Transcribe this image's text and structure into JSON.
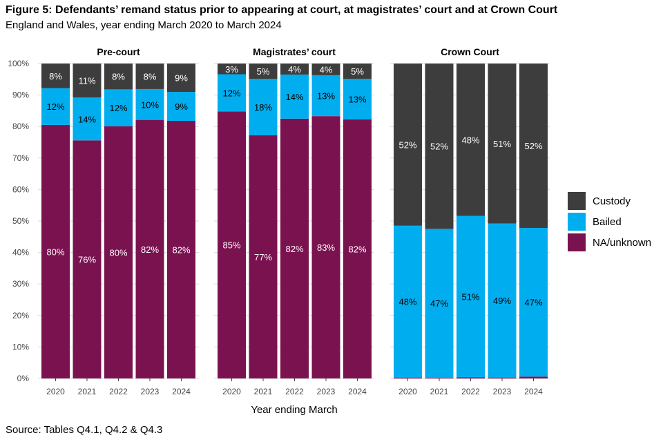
{
  "title": "Figure 5: Defendants’ remand status prior to appearing at court, at magistrates’ court and at Crown Court",
  "subtitle": "England and Wales, year ending March 2020 to March 2024",
  "source": "Source: Tables Q4.1, Q4.2 & Q4.3",
  "xlabel": "Year ending March",
  "y_ticks": [
    "0%",
    "10%",
    "20%",
    "30%",
    "40%",
    "50%",
    "60%",
    "70%",
    "80%",
    "90%",
    "100%"
  ],
  "colors": {
    "custody": "#3d3d3d",
    "bailed": "#00aeef",
    "na_unknown": "#7b1250",
    "grid": "#d9d9d9",
    "axis_text": "#444444"
  },
  "legend": [
    {
      "label": "Custody",
      "color": "#3d3d3d"
    },
    {
      "label": "Bailed",
      "color": "#00aeef"
    },
    {
      "label": "NA/unknown",
      "color": "#7b1250"
    }
  ],
  "chart_data": {
    "type": "bar",
    "stacked": true,
    "ylim": [
      0,
      100
    ],
    "y_unit": "%",
    "grid": true,
    "legend_position": "right",
    "panels": [
      {
        "title": "Pre-court",
        "categories": [
          "2020",
          "2021",
          "2022",
          "2023",
          "2024"
        ],
        "series": [
          {
            "name": "NA/unknown",
            "values": [
              80.5,
              75.6,
              80.1,
              82.1,
              81.8
            ],
            "labels": [
              "80%",
              "76%",
              "80%",
              "82%",
              "82%"
            ]
          },
          {
            "name": "Bailed",
            "values": [
              11.7,
              13.6,
              11.7,
              9.8,
              9.2
            ],
            "labels": [
              "12%",
              "14%",
              "12%",
              "10%",
              "9%"
            ]
          },
          {
            "name": "Custody",
            "values": [
              7.8,
              10.8,
              8.2,
              8.1,
              9.0
            ],
            "labels": [
              "8%",
              "11%",
              "8%",
              "8%",
              "9%"
            ]
          }
        ]
      },
      {
        "title": "Magistrates’ court",
        "categories": [
          "2020",
          "2021",
          "2022",
          "2023",
          "2024"
        ],
        "series": [
          {
            "name": "NA/unknown",
            "values": [
              84.8,
              77.2,
              82.5,
              83.3,
              82.3
            ],
            "labels": [
              "85%",
              "77%",
              "82%",
              "83%",
              "82%"
            ]
          },
          {
            "name": "Bailed",
            "values": [
              11.8,
              17.9,
              14.0,
              13.0,
              12.8
            ],
            "labels": [
              "12%",
              "18%",
              "14%",
              "13%",
              "13%"
            ]
          },
          {
            "name": "Custody",
            "values": [
              3.4,
              4.9,
              3.5,
              3.7,
              4.9
            ],
            "labels": [
              "3%",
              "5%",
              "4%",
              "4%",
              "5%"
            ]
          }
        ]
      },
      {
        "title": "Crown Court",
        "categories": [
          "2020",
          "2021",
          "2022",
          "2023",
          "2024"
        ],
        "series": [
          {
            "name": "NA/unknown",
            "values": [
              0.3,
              0.2,
              0.4,
              0.3,
              0.6
            ],
            "labels": [
              "",
              "",
              "",
              "",
              ""
            ]
          },
          {
            "name": "Bailed",
            "values": [
              48.2,
              47.3,
              51.2,
              48.9,
              47.2
            ],
            "labels": [
              "48%",
              "47%",
              "51%",
              "49%",
              "47%"
            ]
          },
          {
            "name": "Custody",
            "values": [
              51.5,
              52.5,
              48.4,
              50.8,
              52.2
            ],
            "labels": [
              "52%",
              "52%",
              "48%",
              "51%",
              "52%"
            ]
          }
        ]
      }
    ]
  }
}
